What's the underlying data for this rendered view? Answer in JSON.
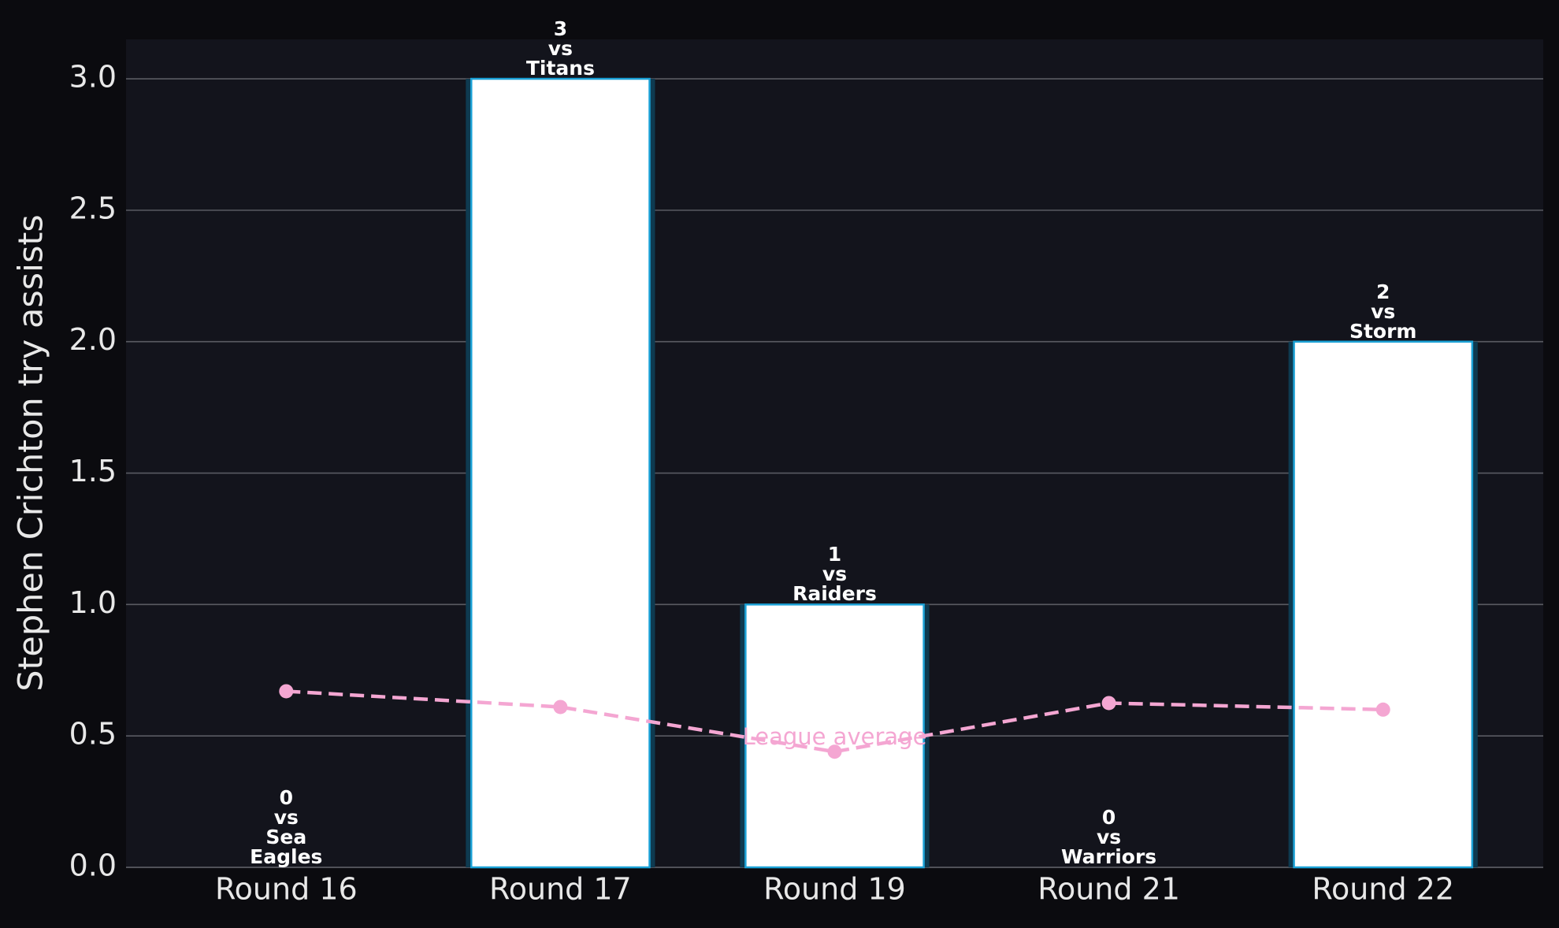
{
  "chart_data": {
    "type": "bar",
    "ylabel": "Stephen Crichton try assists",
    "categories": [
      "Round 16",
      "Round 17",
      "Round 19",
      "Round 21",
      "Round 22"
    ],
    "values": [
      0,
      3,
      1,
      0,
      2
    ],
    "value_labels": [
      "0\nvs\nSea\nEagles",
      "3\nvs\nTitans",
      "1\nvs\nRaiders",
      "0\nvs\nWarriors",
      "2\nvs\nStorm"
    ],
    "color": "#ffffff",
    "edgecolor": "#1ba1d6",
    "glowcolor": "#0e3a50",
    "average": {
      "name": "League average",
      "color": "#f4a6d2",
      "values": [
        0.67,
        0.61,
        0.44,
        0.625,
        0.6
      ]
    },
    "ylim": [
      0,
      3.15
    ],
    "yticks": [
      {
        "value": 0,
        "label": "0.0"
      },
      {
        "value": 0.5,
        "label": "0.5"
      },
      {
        "value": 1,
        "label": "1.0"
      },
      {
        "value": 1.5,
        "label": "1.5"
      },
      {
        "value": 2,
        "label": "2.0"
      },
      {
        "value": 2.5,
        "label": "2.5"
      },
      {
        "value": 3,
        "label": "3.0"
      }
    ],
    "grid": true
  }
}
